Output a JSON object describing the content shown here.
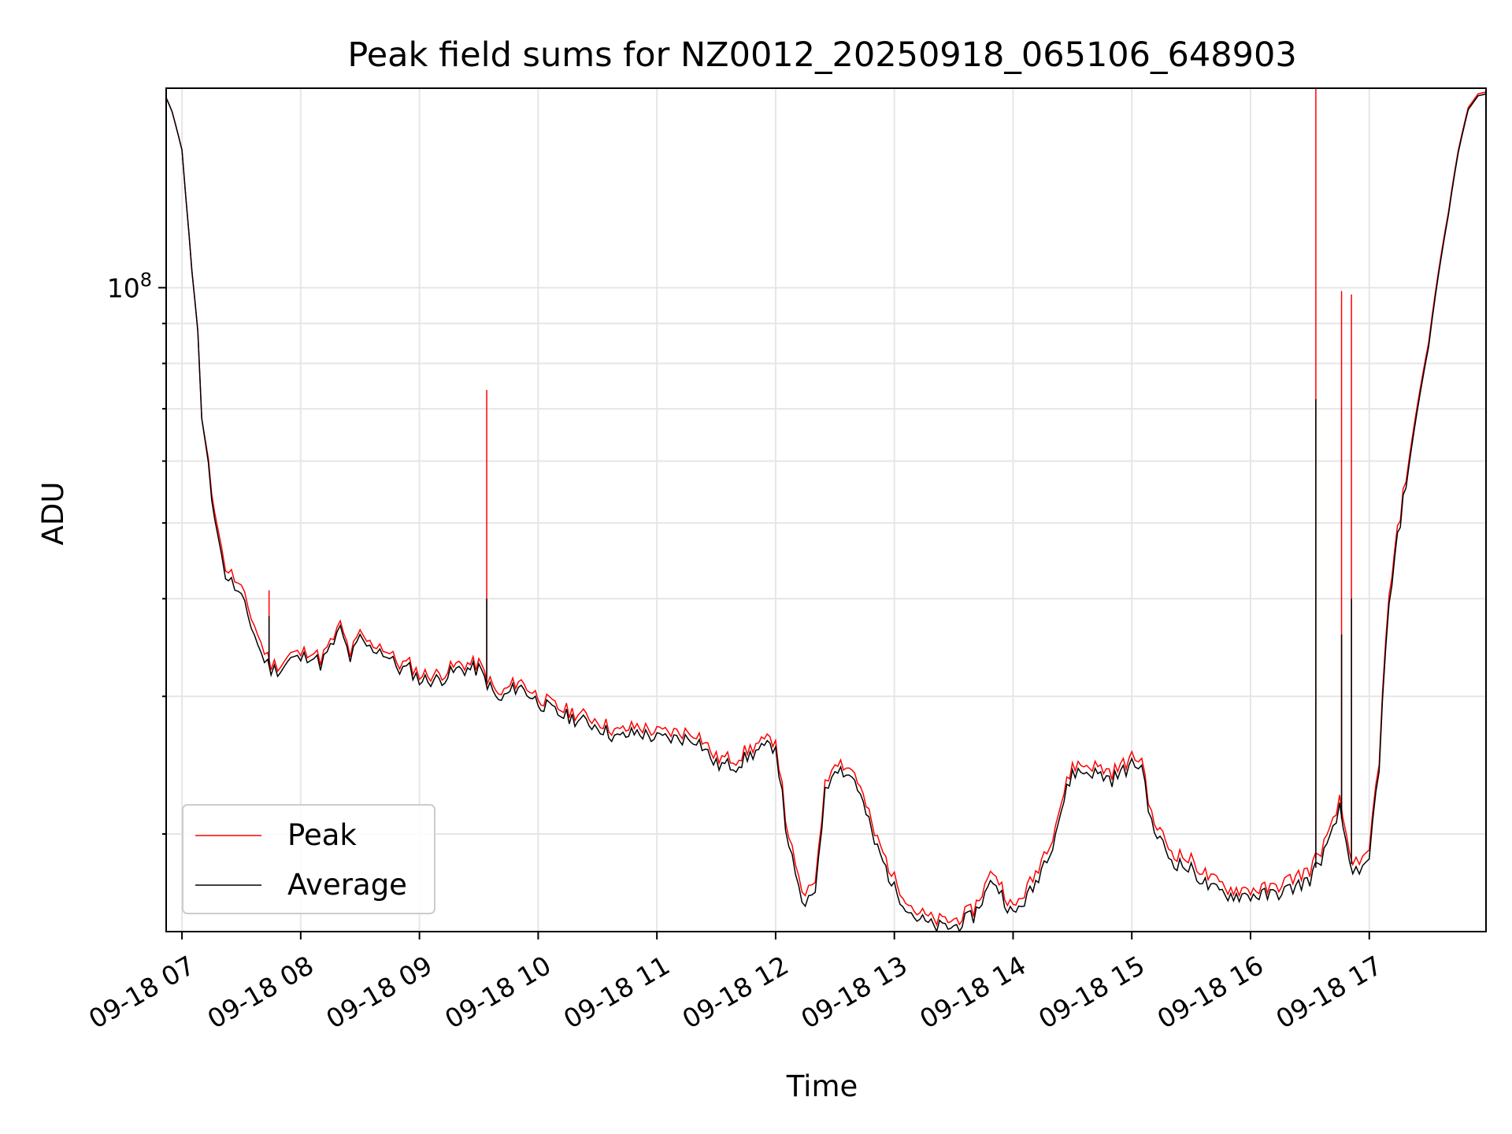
{
  "chart_data": {
    "type": "line",
    "title": "Peak field sums for NZ0012_20250918_065106_648903",
    "xlabel": "Time",
    "ylabel": "ADU",
    "x_ticks": [
      "09-18 07",
      "09-18 08",
      "09-18 09",
      "09-18 10",
      "09-18 11",
      "09-18 12",
      "09-18 13",
      "09-18 14",
      "09-18 15",
      "09-18 16",
      "09-18 17"
    ],
    "y_tick_label": {
      "base": "10",
      "exp": "8",
      "value": 100000000
    },
    "y_scale": "log",
    "ylim": [
      15000000,
      180000000
    ],
    "xlim": [
      "2025-09-18 06:52",
      "2025-09-18 17:59"
    ],
    "grid": true,
    "legend_position": "lower left",
    "series": [
      {
        "name": "Peak",
        "color": "#ff0000",
        "x": [
          "06:52",
          "06:55",
          "07:00",
          "07:02",
          "07:05",
          "07:08",
          "07:10",
          "07:15",
          "07:18",
          "07:20",
          "07:22",
          "07:25",
          "07:30",
          "07:35",
          "07:40",
          "07:45",
          "07:50",
          "07:55",
          "08:00",
          "08:05",
          "08:10",
          "08:15",
          "08:20",
          "08:25",
          "08:30",
          "08:35",
          "08:40",
          "08:45",
          "08:50",
          "08:55",
          "09:00",
          "09:10",
          "09:20",
          "09:30",
          "09:40",
          "09:50",
          "10:00",
          "10:10",
          "10:20",
          "10:30",
          "10:40",
          "10:50",
          "11:00",
          "11:10",
          "11:20",
          "11:30",
          "11:40",
          "11:50",
          "12:00",
          "12:05",
          "12:10",
          "12:15",
          "12:20",
          "12:25",
          "12:30",
          "12:40",
          "12:50",
          "13:00",
          "13:10",
          "13:20",
          "13:30",
          "13:40",
          "13:50",
          "14:00",
          "14:10",
          "14:20",
          "14:30",
          "14:40",
          "14:50",
          "15:00",
          "15:05",
          "15:10",
          "15:20",
          "15:30",
          "15:40",
          "15:50",
          "16:00",
          "16:10",
          "16:20",
          "16:30",
          "16:40",
          "16:45",
          "16:50",
          "16:55",
          "17:00",
          "17:05",
          "17:10",
          "17:20",
          "17:30",
          "17:35",
          "17:40",
          "17:45",
          "17:50",
          "17:55",
          "17:59"
        ],
        "values": [
          175,
          168,
          150,
          130,
          105,
          88,
          68,
          55,
          50,
          46,
          44,
          43,
          41,
          38,
          35,
          33,
          33,
          34,
          34,
          34.5,
          33.5,
          35,
          37,
          34,
          36,
          35,
          35,
          34,
          33,
          33,
          32,
          32,
          33,
          33,
          30,
          31.5,
          30,
          29,
          28.5,
          28,
          27,
          27.5,
          27,
          27,
          27,
          25,
          25,
          26,
          26.5,
          21,
          18,
          16.5,
          17.5,
          23,
          25,
          24,
          20,
          17.5,
          16,
          15.5,
          15.5,
          16,
          18,
          16,
          17.5,
          20,
          24.5,
          24.5,
          24,
          25,
          25,
          21,
          19,
          18.5,
          17.5,
          17,
          17,
          17,
          17.5,
          18,
          20,
          22,
          19,
          18,
          19,
          25,
          40,
          60,
          85,
          105,
          125,
          150,
          170,
          177,
          178
        ],
        "spikes": [
          {
            "x": "07:44",
            "value": 41
          },
          {
            "x": "09:34",
            "value": 74
          },
          {
            "x": "16:33",
            "value": 180
          },
          {
            "x": "16:46",
            "value": 99
          },
          {
            "x": "16:51",
            "value": 98
          }
        ]
      },
      {
        "name": "Average",
        "color": "#000000",
        "x": [
          "06:52",
          "06:55",
          "07:00",
          "07:02",
          "07:05",
          "07:08",
          "07:10",
          "07:15",
          "07:18",
          "07:20",
          "07:22",
          "07:25",
          "07:30",
          "07:35",
          "07:40",
          "07:45",
          "07:50",
          "07:55",
          "08:00",
          "08:05",
          "08:10",
          "08:15",
          "08:20",
          "08:25",
          "08:30",
          "08:35",
          "08:40",
          "08:45",
          "08:50",
          "08:55",
          "09:00",
          "09:10",
          "09:20",
          "09:30",
          "09:40",
          "09:50",
          "10:00",
          "10:10",
          "10:20",
          "10:30",
          "10:40",
          "10:50",
          "11:00",
          "11:10",
          "11:20",
          "11:30",
          "11:40",
          "11:50",
          "12:00",
          "12:05",
          "12:10",
          "12:15",
          "12:20",
          "12:25",
          "12:30",
          "12:40",
          "12:50",
          "13:00",
          "13:10",
          "13:20",
          "13:30",
          "13:40",
          "13:50",
          "14:00",
          "14:10",
          "14:20",
          "14:30",
          "14:40",
          "14:50",
          "15:00",
          "15:05",
          "15:10",
          "15:20",
          "15:30",
          "15:40",
          "15:50",
          "16:00",
          "16:10",
          "16:20",
          "16:30",
          "16:40",
          "16:45",
          "16:50",
          "16:55",
          "17:00",
          "17:05",
          "17:10",
          "17:20",
          "17:30",
          "17:35",
          "17:40",
          "17:45",
          "17:50",
          "17:55",
          "17:59"
        ],
        "values": [
          175,
          168,
          150,
          130,
          105,
          88,
          68,
          54,
          49,
          45,
          43,
          42,
          40,
          37,
          34,
          32.5,
          32.5,
          33.5,
          33.5,
          34,
          33,
          34.5,
          36.5,
          33.5,
          35.5,
          34.5,
          34.5,
          33.5,
          32.5,
          32.5,
          31.5,
          31.5,
          32.5,
          32.5,
          29.5,
          31,
          29.5,
          28.5,
          28,
          27.5,
          26.5,
          27,
          26.5,
          26.5,
          26.5,
          24.5,
          24.5,
          25.5,
          26,
          20.5,
          17.5,
          16,
          17,
          22.5,
          24.5,
          23.5,
          19.5,
          17,
          15.7,
          15.2,
          15.2,
          15.7,
          17.5,
          15.7,
          17,
          19.5,
          24,
          24,
          23.5,
          24.5,
          24.5,
          20.5,
          18.5,
          18,
          17,
          16.7,
          16.7,
          16.7,
          17,
          17.5,
          19.5,
          21.5,
          18.5,
          17.5,
          18.5,
          24.5,
          39,
          59,
          84,
          104,
          124,
          149,
          169,
          176,
          177
        ],
        "spikes": [
          {
            "x": "07:44",
            "value": 38
          },
          {
            "x": "09:34",
            "value": 40
          },
          {
            "x": "16:33",
            "value": 72
          },
          {
            "x": "16:46",
            "value": 36
          },
          {
            "x": "16:51",
            "value": 40
          }
        ]
      }
    ],
    "values_unit_note_scale": 1000000
  }
}
